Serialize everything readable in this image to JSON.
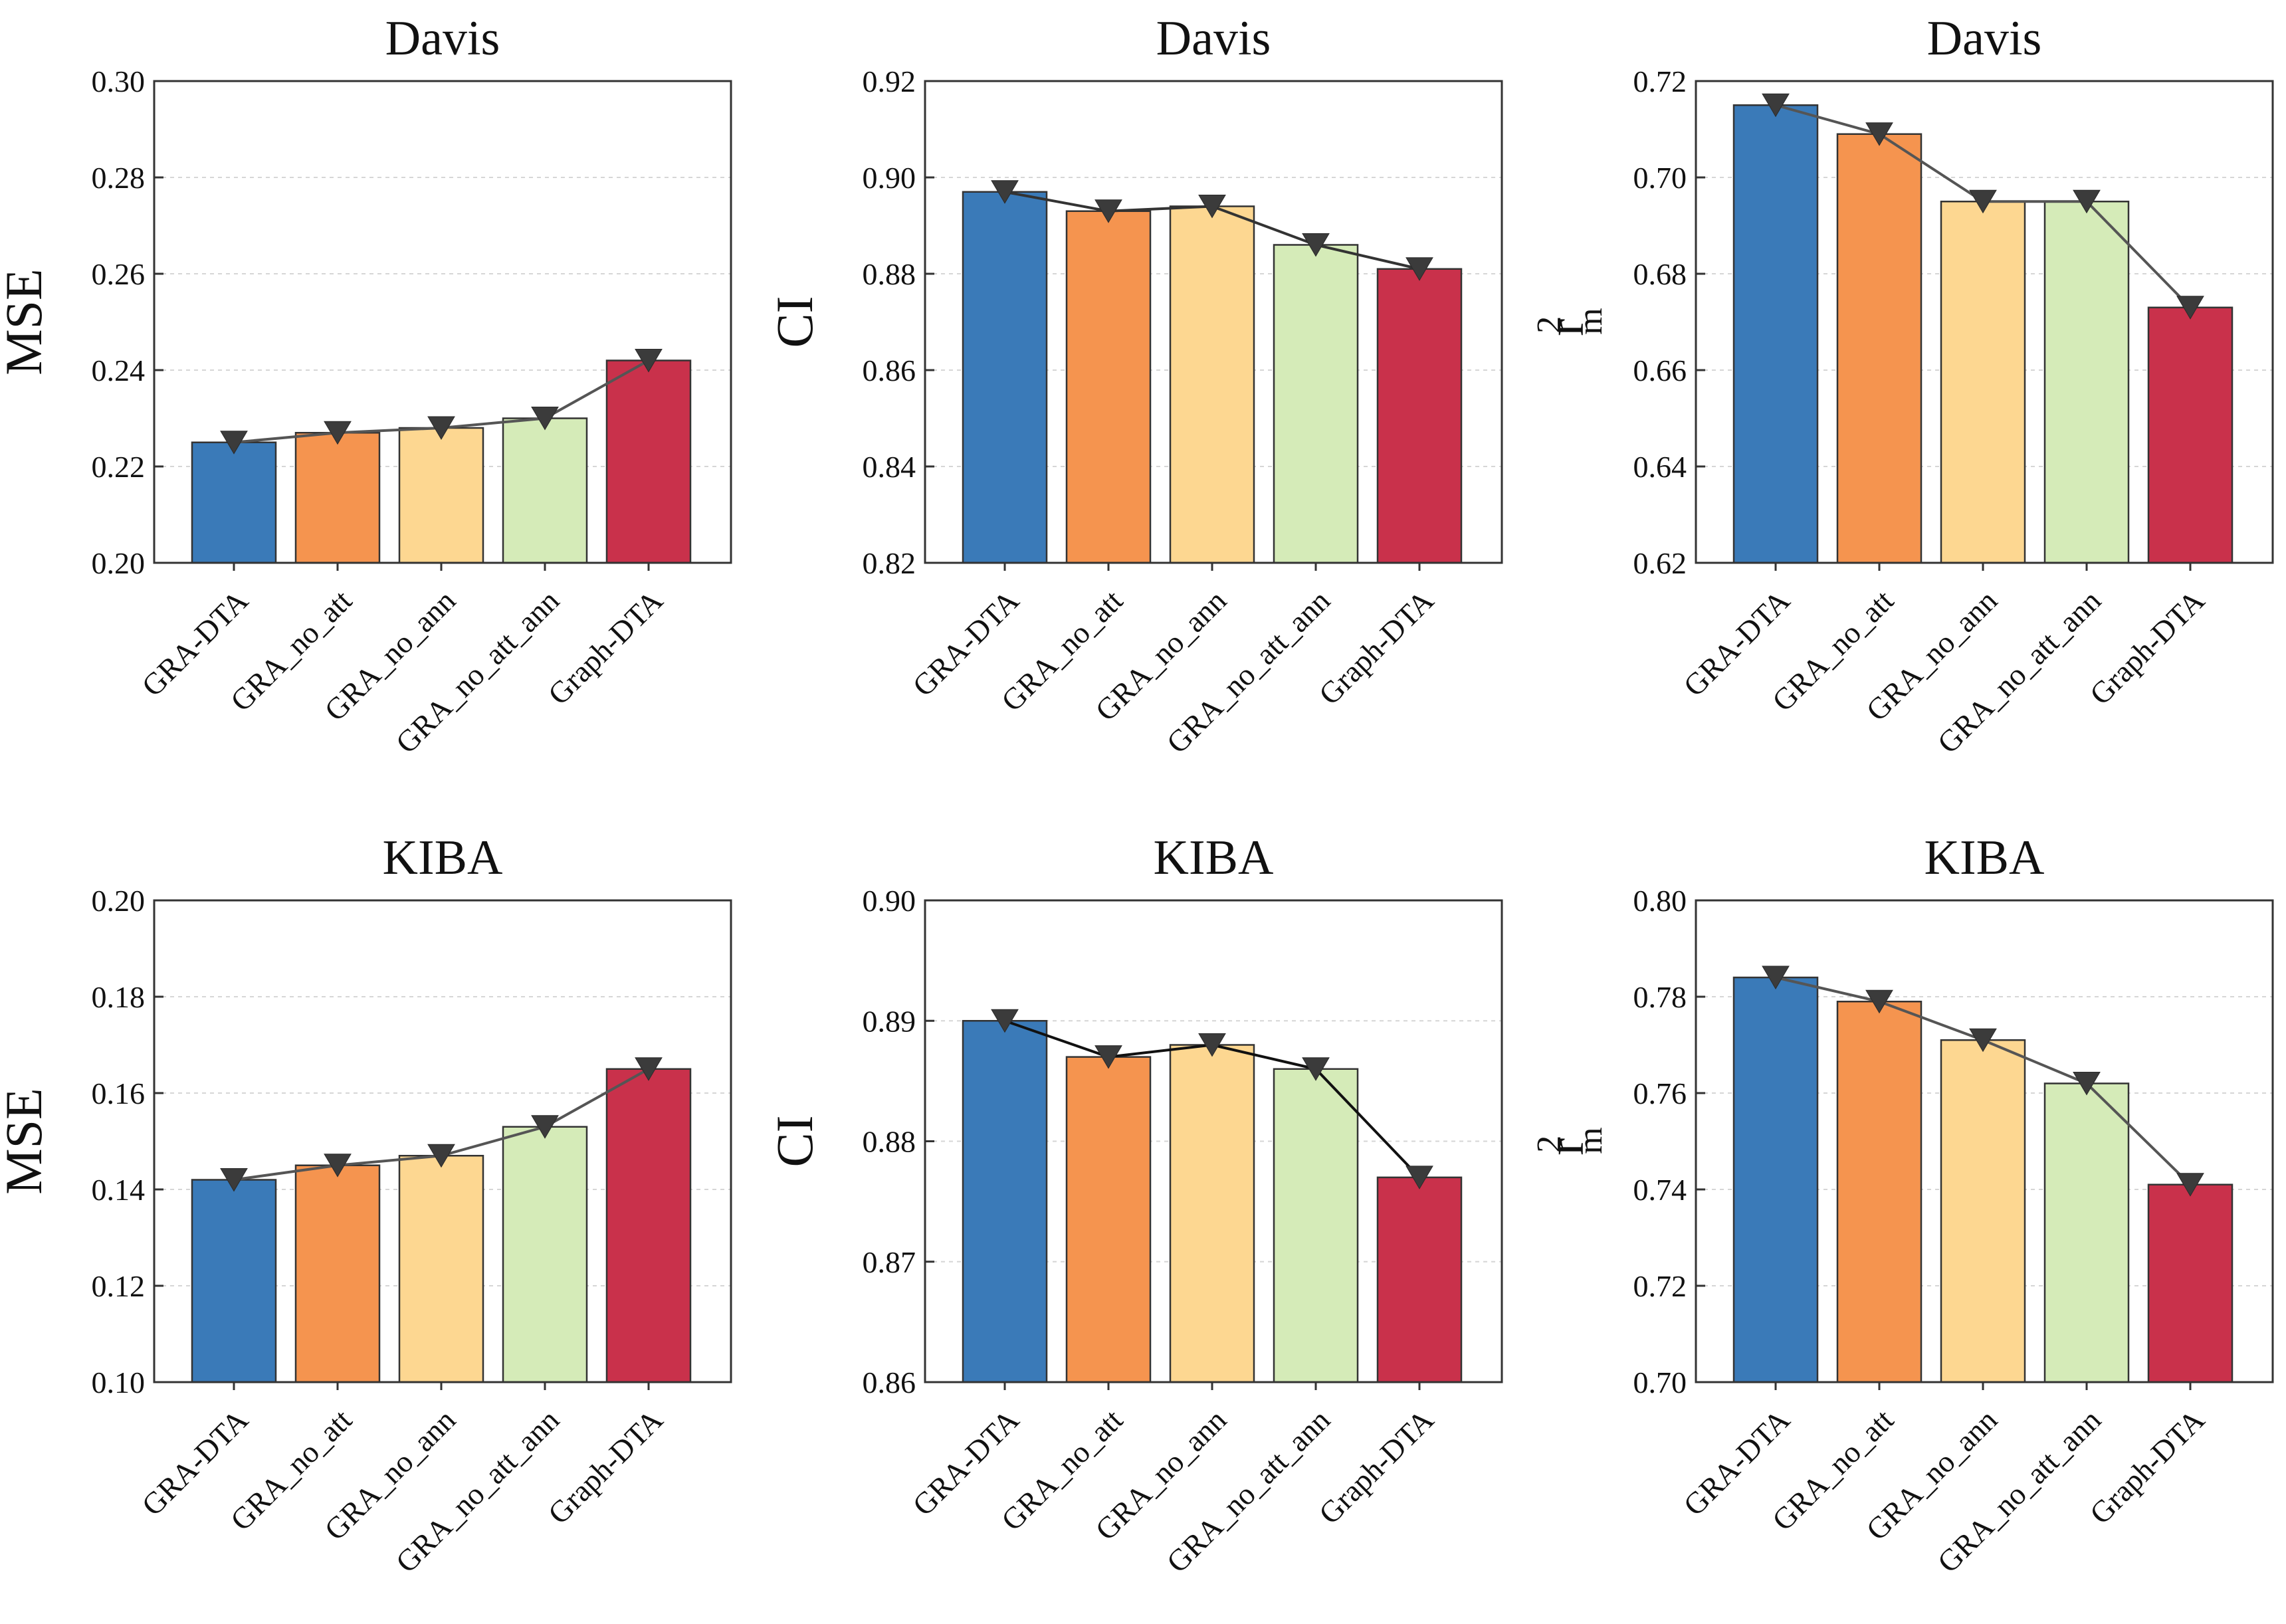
{
  "colors": {
    "GRA-DTA": "#3a7ab8",
    "GRA_no_att": "#f5944f",
    "GRA_no_ann": "#fdd791",
    "GRA_no_att_ann": "#d5ebb8",
    "Graph-DTA": "#c9314b",
    "marker": "#3b3b3b"
  },
  "chart_data": [
    {
      "type": "bar",
      "title": "Davis",
      "ylabel": "MSE",
      "ylim": [
        0.2,
        0.3
      ],
      "yticks": [
        "0.20",
        "0.22",
        "0.24",
        "0.26",
        "0.28",
        "0.30"
      ],
      "categories": [
        "GRA-DTA",
        "GRA_no_att",
        "GRA_no_ann",
        "GRA_no_att_ann",
        "Graph-DTA"
      ],
      "values": [
        0.225,
        0.227,
        0.228,
        0.23,
        0.242
      ],
      "line_color": "#555555",
      "grid": true
    },
    {
      "type": "bar",
      "title": "Davis",
      "ylabel": "CI",
      "ylim": [
        0.82,
        0.92
      ],
      "yticks": [
        "0.82",
        "0.84",
        "0.86",
        "0.88",
        "0.90",
        "0.92"
      ],
      "categories": [
        "GRA-DTA",
        "GRA_no_att",
        "GRA_no_ann",
        "GRA_no_att_ann",
        "Graph-DTA"
      ],
      "values": [
        0.897,
        0.893,
        0.894,
        0.886,
        0.881
      ],
      "line_color": "#333333",
      "grid": true
    },
    {
      "type": "bar",
      "title": "Davis",
      "ylabel": "r",
      "ylabel_sup": "2",
      "ylabel_sub": "m",
      "ylim": [
        0.62,
        0.72
      ],
      "yticks": [
        "0.62",
        "0.64",
        "0.66",
        "0.68",
        "0.70",
        "0.72"
      ],
      "categories": [
        "GRA-DTA",
        "GRA_no_att",
        "GRA_no_ann",
        "GRA_no_att_ann",
        "Graph-DTA"
      ],
      "values": [
        0.715,
        0.709,
        0.695,
        0.695,
        0.673
      ],
      "line_color": "#555555",
      "grid": true
    },
    {
      "type": "bar",
      "title": "KIBA",
      "ylabel": "MSE",
      "ylim": [
        0.1,
        0.2
      ],
      "yticks": [
        "0.10",
        "0.12",
        "0.14",
        "0.16",
        "0.18",
        "0.20"
      ],
      "categories": [
        "GRA-DTA",
        "GRA_no_att",
        "GRA_no_ann",
        "GRA_no_att_ann",
        "Graph-DTA"
      ],
      "values": [
        0.142,
        0.145,
        0.147,
        0.153,
        0.165
      ],
      "line_color": "#555555",
      "grid": true
    },
    {
      "type": "bar",
      "title": "KIBA",
      "ylabel": "CI",
      "ylim": [
        0.86,
        0.9
      ],
      "yticks": [
        "0.86",
        "0.87",
        "0.88",
        "0.89",
        "0.90"
      ],
      "categories": [
        "GRA-DTA",
        "GRA_no_att",
        "GRA_no_ann",
        "GRA_no_att_ann",
        "Graph-DTA"
      ],
      "values": [
        0.89,
        0.887,
        0.888,
        0.886,
        0.877
      ],
      "line_color": "#111111",
      "grid": true
    },
    {
      "type": "bar",
      "title": "KIBA",
      "ylabel": "r",
      "ylabel_sup": "2",
      "ylabel_sub": "m",
      "ylim": [
        0.7,
        0.8
      ],
      "yticks": [
        "0.70",
        "0.72",
        "0.74",
        "0.76",
        "0.78",
        "0.80"
      ],
      "categories": [
        "GRA-DTA",
        "GRA_no_att",
        "GRA_no_ann",
        "GRA_no_att_ann",
        "Graph-DTA"
      ],
      "values": [
        0.784,
        0.779,
        0.771,
        0.762,
        0.741
      ],
      "line_color": "#555555",
      "grid": true
    }
  ]
}
